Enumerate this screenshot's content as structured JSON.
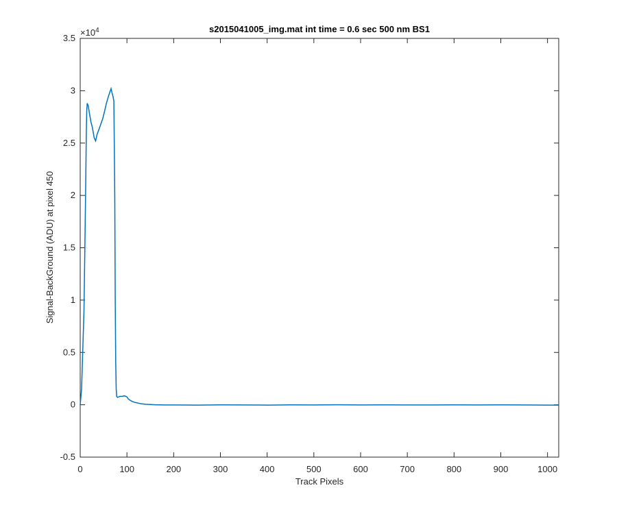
{
  "chart_data": {
    "type": "line",
    "title": "s2015041005_img.mat int time = 0.6 sec  500 nm BS1",
    "xlabel": "Track Pixels",
    "ylabel": "Signal-BackGround (ADU) at pixel 450",
    "xlim": [
      0,
      1024
    ],
    "ylim": [
      -5000,
      35000
    ],
    "x_ticks": [
      0,
      100,
      200,
      300,
      400,
      500,
      600,
      700,
      800,
      900,
      1000
    ],
    "y_ticks": [
      -5000,
      0,
      5000,
      10000,
      15000,
      20000,
      25000,
      30000,
      35000
    ],
    "y_tick_labels": [
      "-0.5",
      "0",
      "0.5",
      "1",
      "1.5",
      "2",
      "2.5",
      "3",
      "3.5"
    ],
    "y_multiplier_base": "×10",
    "y_multiplier_exp": "4",
    "grid": false,
    "line_color": "#0072BD",
    "series": [
      {
        "x": [
          0,
          3,
          5,
          8,
          10,
          12,
          13,
          14,
          15,
          17,
          20,
          23,
          26,
          30,
          33,
          36,
          40,
          44,
          48,
          52,
          56,
          60,
          63,
          66,
          68,
          70,
          72,
          74,
          75,
          76,
          77,
          78,
          80,
          85,
          90,
          95,
          100,
          103,
          106,
          110,
          115,
          120,
          125,
          130,
          140,
          150,
          160,
          180,
          200,
          250,
          300,
          350,
          400,
          450,
          500,
          550,
          600,
          650,
          700,
          750,
          800,
          850,
          900,
          950,
          1000,
          1024
        ],
        "y": [
          0,
          1500,
          4500,
          9000,
          15000,
          22000,
          26000,
          28000,
          28800,
          28600,
          27800,
          27000,
          26500,
          25500,
          25200,
          25800,
          26300,
          26800,
          27300,
          28000,
          28800,
          29400,
          29800,
          30200,
          29800,
          29500,
          29000,
          20000,
          10000,
          4000,
          1500,
          800,
          700,
          800,
          800,
          850,
          750,
          550,
          450,
          350,
          250,
          200,
          150,
          100,
          50,
          20,
          0,
          -20,
          -20,
          -30,
          -10,
          -20,
          -30,
          -10,
          -20,
          0,
          -20,
          -10,
          -20,
          -20,
          -10,
          -20,
          -10,
          -20,
          -30,
          -30
        ]
      }
    ]
  }
}
